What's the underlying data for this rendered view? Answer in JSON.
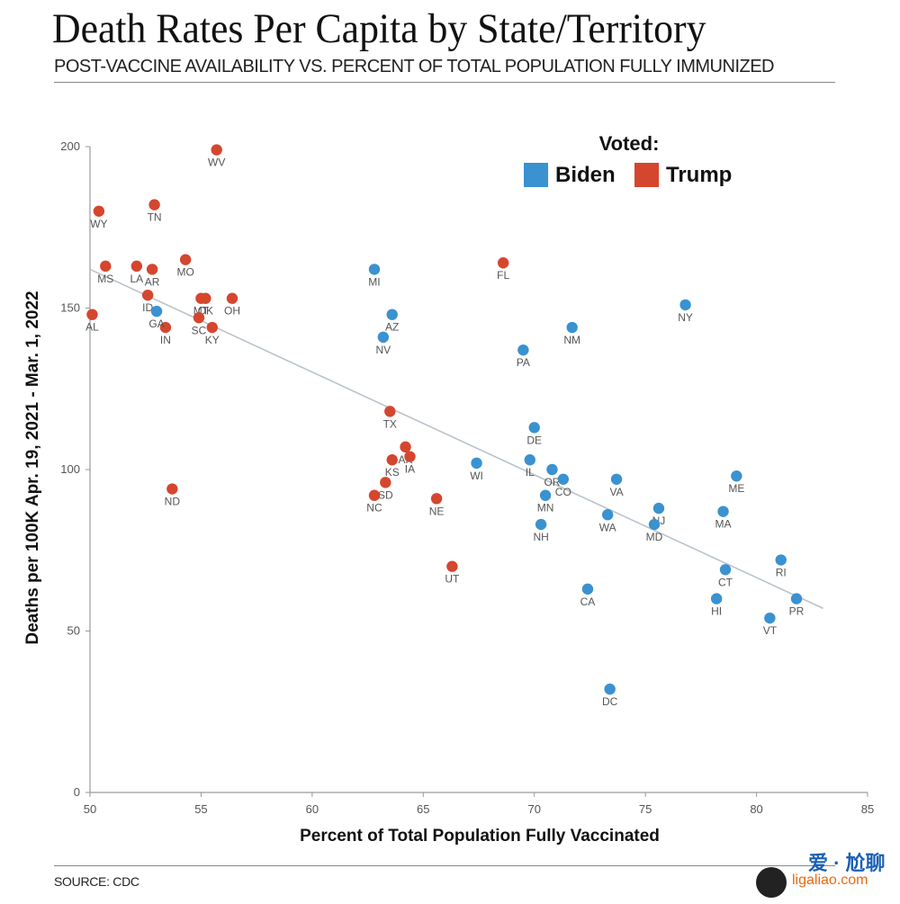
{
  "title": "Death Rates Per Capita by State/Territory",
  "subtitle": "POST-VACCINE AVAILABILITY VS. PERCENT OF TOTAL POPULATION FULLY IMMUNIZED",
  "source": "SOURCE: CDC",
  "watermark": {
    "text": "爱 · 尬聊",
    "url": "ligaliao.com"
  },
  "colors": {
    "biden": "#3a92d0",
    "trump": "#d5462e",
    "trend": "#b9c3cc",
    "axis": "#9a9a9a"
  },
  "chart_data": {
    "type": "scatter",
    "title": "Death Rates Per Capita by State/Territory",
    "xlabel": "Percent of Total Population Fully Vaccinated",
    "ylabel": "Deaths per 100K Apr. 19, 2021 - Mar. 1, 2022",
    "xlim": [
      50,
      85
    ],
    "ylim": [
      0,
      200
    ],
    "xticks": [
      50,
      55,
      60,
      65,
      70,
      75,
      80,
      85
    ],
    "yticks": [
      0,
      50,
      100,
      150,
      200
    ],
    "legend": {
      "title": "Voted:",
      "entries": [
        "Biden",
        "Trump"
      ],
      "placement": "top-right"
    },
    "trendline": {
      "x": [
        50,
        83
      ],
      "y": [
        162,
        57
      ]
    },
    "series": [
      {
        "name": "Trump",
        "points": [
          {
            "label": "WV",
            "x": 55.7,
            "y": 199
          },
          {
            "label": "WY",
            "x": 50.4,
            "y": 180
          },
          {
            "label": "TN",
            "x": 52.9,
            "y": 182
          },
          {
            "label": "MS",
            "x": 50.7,
            "y": 163
          },
          {
            "label": "LA",
            "x": 52.1,
            "y": 163
          },
          {
            "label": "AR",
            "x": 52.8,
            "y": 162
          },
          {
            "label": "MO",
            "x": 54.3,
            "y": 165
          },
          {
            "label": "ID",
            "x": 52.6,
            "y": 154
          },
          {
            "label": "MT",
            "x": 55.0,
            "y": 153
          },
          {
            "label": "OK",
            "x": 55.2,
            "y": 153
          },
          {
            "label": "OH",
            "x": 56.4,
            "y": 153
          },
          {
            "label": "AL",
            "x": 50.1,
            "y": 148
          },
          {
            "label": "SC",
            "x": 54.9,
            "y": 147
          },
          {
            "label": "IN",
            "x": 53.4,
            "y": 144
          },
          {
            "label": "KY",
            "x": 55.5,
            "y": 144
          },
          {
            "label": "FL",
            "x": 68.6,
            "y": 164
          },
          {
            "label": "TX",
            "x": 63.5,
            "y": 118
          },
          {
            "label": "AK",
            "x": 64.2,
            "y": 107
          },
          {
            "label": "IA",
            "x": 64.4,
            "y": 104
          },
          {
            "label": "KS",
            "x": 63.6,
            "y": 103
          },
          {
            "label": "SD",
            "x": 63.3,
            "y": 96
          },
          {
            "label": "NC",
            "x": 62.8,
            "y": 92
          },
          {
            "label": "ND",
            "x": 53.7,
            "y": 94
          },
          {
            "label": "NE",
            "x": 65.6,
            "y": 91
          },
          {
            "label": "UT",
            "x": 66.3,
            "y": 70
          }
        ]
      },
      {
        "name": "Biden",
        "points": [
          {
            "label": "MI",
            "x": 62.8,
            "y": 162
          },
          {
            "label": "GA",
            "x": 53.0,
            "y": 149
          },
          {
            "label": "AZ",
            "x": 63.6,
            "y": 148
          },
          {
            "label": "NV",
            "x": 63.2,
            "y": 141
          },
          {
            "label": "NM",
            "x": 71.7,
            "y": 144
          },
          {
            "label": "PA",
            "x": 69.5,
            "y": 137
          },
          {
            "label": "NY",
            "x": 76.8,
            "y": 151
          },
          {
            "label": "DE",
            "x": 70.0,
            "y": 113
          },
          {
            "label": "WI",
            "x": 67.4,
            "y": 102
          },
          {
            "label": "IL",
            "x": 69.8,
            "y": 103
          },
          {
            "label": "OR",
            "x": 70.8,
            "y": 100
          },
          {
            "label": "CO",
            "x": 71.3,
            "y": 97
          },
          {
            "label": "MN",
            "x": 70.5,
            "y": 92
          },
          {
            "label": "NH",
            "x": 70.3,
            "y": 83
          },
          {
            "label": "VA",
            "x": 73.7,
            "y": 97
          },
          {
            "label": "WA",
            "x": 73.3,
            "y": 86
          },
          {
            "label": "NJ",
            "x": 75.6,
            "y": 88
          },
          {
            "label": "MD",
            "x": 75.4,
            "y": 83
          },
          {
            "label": "ME",
            "x": 79.1,
            "y": 98
          },
          {
            "label": "MA",
            "x": 78.5,
            "y": 87
          },
          {
            "label": "RI",
            "x": 81.1,
            "y": 72
          },
          {
            "label": "CT",
            "x": 78.6,
            "y": 69
          },
          {
            "label": "CA",
            "x": 72.4,
            "y": 63
          },
          {
            "label": "HI",
            "x": 78.2,
            "y": 60
          },
          {
            "label": "PR",
            "x": 81.8,
            "y": 60
          },
          {
            "label": "VT",
            "x": 80.6,
            "y": 54
          },
          {
            "label": "DC",
            "x": 73.4,
            "y": 32
          }
        ]
      }
    ]
  }
}
